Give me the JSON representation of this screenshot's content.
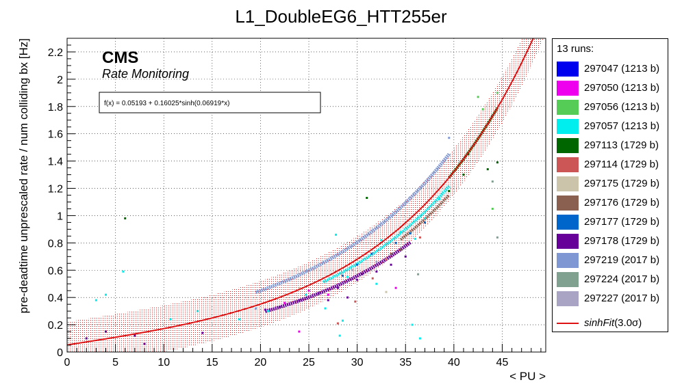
{
  "chart_data": {
    "type": "scatter",
    "title": "L1_DoubleEG6_HTT255er",
    "xlabel": "< PU >",
    "ylabel": "pre-deadtime unprescaled rate / num colliding bx [Hz]",
    "xlim": [
      0,
      49.5
    ],
    "ylim": [
      0,
      2.3
    ],
    "x_ticks": [
      0,
      5,
      10,
      15,
      20,
      25,
      30,
      35,
      40,
      45
    ],
    "y_ticks": [
      0,
      0.2,
      0.4,
      0.6,
      0.8,
      1,
      1.2,
      1.4,
      1.6,
      1.8,
      2,
      2.2
    ],
    "grid": true,
    "legend_position": "right",
    "cms_label": "CMS",
    "cms_sublabel": "Rate Monitoring",
    "fit_formula": "f(x) = 0.05193 + 0.16025*sinh(0.06919*x)",
    "fit": {
      "a": 0.05193,
      "b": 0.16025,
      "c": 0.06919,
      "band_sigma": 3.0,
      "band_halfwidth": 0.17,
      "color": "#dd1111"
    },
    "legend_title": "13 runs:",
    "fit_legend": {
      "name": "sinhFit",
      "suffix": "(3.0σ)"
    },
    "series": [
      {
        "name": "297047 (1213 b)",
        "color": "#0000ee",
        "points": []
      },
      {
        "name": "297050 (1213 b)",
        "color": "#ee00ee",
        "points": [
          [
            22.5,
            0.36
          ],
          [
            25.0,
            0.45
          ],
          [
            27.0,
            0.42
          ],
          [
            34.0,
            0.47
          ],
          [
            24.0,
            0.15
          ]
        ]
      },
      {
        "name": "297056 (1213 b)",
        "color": "#55cc55",
        "points": [
          [
            42.5,
            1.87
          ],
          [
            44.5,
            1.9
          ],
          [
            43.0,
            1.78
          ],
          [
            44.0,
            1.05
          ]
        ]
      },
      {
        "name": "297057 (1213 b)",
        "color": "#00eeee",
        "points": [
          [
            4.0,
            0.42
          ],
          [
            5.8,
            0.59
          ],
          [
            10.7,
            0.24
          ],
          [
            13.5,
            0.3
          ],
          [
            17.8,
            0.24
          ],
          [
            20.8,
            0.3
          ],
          [
            24.7,
            0.42
          ],
          [
            26.7,
            0.32
          ],
          [
            27.8,
            0.86
          ],
          [
            28.5,
            0.23
          ],
          [
            28.2,
            0.12
          ],
          [
            29.0,
            0.55
          ],
          [
            32.5,
            0.82
          ],
          [
            34.5,
            0.88
          ],
          [
            35.7,
            0.2
          ],
          [
            36.0,
            0.83
          ],
          [
            37.0,
            0.98
          ],
          [
            38.5,
            1.12
          ],
          [
            32.0,
            0.5
          ],
          [
            36.5,
            0.1
          ],
          [
            3.0,
            0.38
          ]
        ]
      },
      {
        "name": "297113 (1729 b)",
        "color": "#006600",
        "points": [
          [
            6.0,
            0.98
          ],
          [
            31.0,
            1.13
          ],
          [
            39.5,
            1.18
          ],
          [
            41.0,
            1.3
          ],
          [
            43.5,
            1.34
          ],
          [
            44.5,
            1.39
          ],
          [
            41.5,
            1.45
          ]
        ],
        "trend": {
          "from": 39.5,
          "to": 44.5,
          "scale": 1.0,
          "shift": 0.0,
          "width": 4
        }
      },
      {
        "name": "297114 (1729 b)",
        "color": "#cc5555",
        "points": [
          [
            29.8,
            0.37
          ],
          [
            31.6,
            0.54
          ],
          [
            28.0,
            0.21
          ],
          [
            33.0,
            0.68
          ],
          [
            36.5,
            0.84
          ]
        ]
      },
      {
        "name": "297175 (1729 b)",
        "color": "#ccc4aa",
        "points": [
          [
            33.0,
            0.44
          ],
          [
            24.0,
            0.47
          ]
        ]
      },
      {
        "name": "297176 (1729 b)",
        "color": "#8a6050",
        "points": [
          [
            33.5,
            0.72
          ],
          [
            34.5,
            0.75
          ]
        ],
        "trend": {
          "from": 34.5,
          "to": 39.5,
          "scale": 0.9,
          "shift": 0.0,
          "width": 4
        }
      },
      {
        "name": "297177 (1729 b)",
        "color": "#0066cc",
        "points": [
          [
            28.5,
            0.56
          ],
          [
            30.0,
            0.64
          ],
          [
            31.5,
            0.72
          ],
          [
            34.0,
            0.8
          ],
          [
            35.5,
            0.87
          ],
          [
            37.0,
            0.95
          ]
        ]
      },
      {
        "name": "297178 (1729 b)",
        "color": "#660099",
        "points": [
          [
            7.0,
            0.12
          ],
          [
            8.0,
            0.06
          ],
          [
            20.5,
            0.31
          ],
          [
            22.0,
            0.33
          ],
          [
            24.0,
            0.38
          ],
          [
            26.0,
            0.43
          ],
          [
            28.0,
            0.47
          ],
          [
            30.0,
            0.53
          ],
          [
            32.0,
            0.59
          ],
          [
            33.5,
            0.64
          ],
          [
            35.0,
            0.7
          ],
          [
            29.0,
            0.4
          ],
          [
            27.0,
            0.38
          ],
          [
            14.0,
            0.14
          ],
          [
            4.0,
            0.15
          ],
          [
            2.0,
            0.1
          ],
          [
            30.5,
            0.57
          ]
        ],
        "trend": {
          "from": 20.5,
          "to": 35.5,
          "scale": 0.82,
          "shift": 0.0,
          "width": 5
        }
      },
      {
        "name": "297219 (2017 b)",
        "color": "#7f98d4",
        "points": [
          [
            39.5,
            1.57
          ],
          [
            19.5,
            0.32
          ]
        ],
        "trend": {
          "from": 19.5,
          "to": 39.6,
          "scale": 1.08,
          "shift": 0.07,
          "width": 5
        }
      },
      {
        "name": "297224 (2017 b)",
        "color": "#80a090",
        "points": [
          [
            44.5,
            0.84
          ],
          [
            44.0,
            1.25
          ],
          [
            36.3,
            0.57
          ]
        ]
      },
      {
        "name": "297227 (2017 b)",
        "color": "#aaa4c4",
        "points": [
          [
            29.5,
            0.6
          ],
          [
            32.0,
            0.66
          ]
        ]
      }
    ],
    "cyan_trend": {
      "from": 26.5,
      "to": 39.5,
      "scale": 0.95,
      "shift": 0.0,
      "width": 4,
      "color": "#00eeee"
    }
  }
}
